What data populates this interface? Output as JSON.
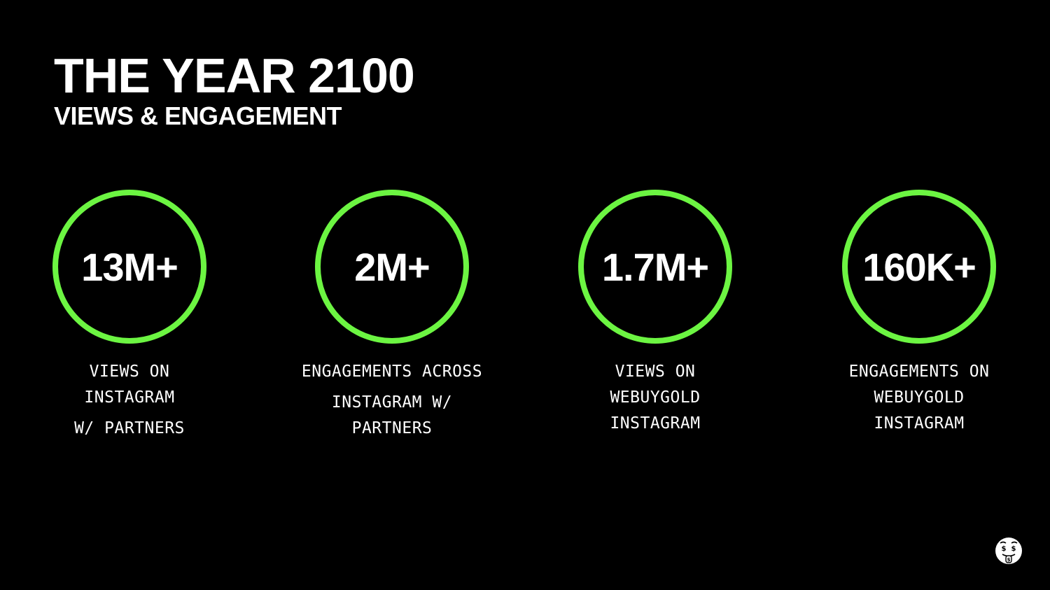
{
  "slide": {
    "title": "THE YEAR 2100",
    "subtitle": "VIEWS & ENGAGEMENT"
  },
  "stats": [
    {
      "value": "13M+",
      "caption_lines": [
        "VIEWS ON",
        "INSTAGRAM",
        "W/ PARTNERS"
      ]
    },
    {
      "value": "2M+",
      "caption_lines": [
        "ENGAGEMENTS ACROSS",
        "INSTAGRAM W/",
        "PARTNERS"
      ]
    },
    {
      "value": "1.7M+",
      "caption_lines": [
        "VIEWS ON",
        "WEBUYGOLD",
        "INSTAGRAM"
      ]
    },
    {
      "value": "160K+",
      "caption_lines": [
        "ENGAGEMENTS ON",
        "WEBUYGOLD",
        "INSTAGRAM"
      ]
    }
  ],
  "icons": {
    "corner": "money-mouth-face-icon"
  },
  "colors": {
    "background": "#000000",
    "ring": "#6cf542",
    "text": "#ffffff"
  }
}
